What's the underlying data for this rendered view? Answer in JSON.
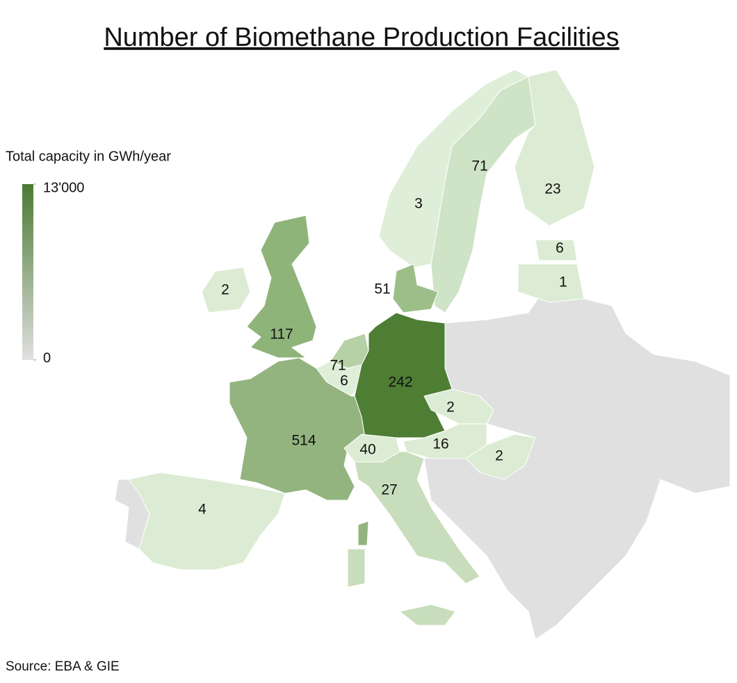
{
  "title": "Number of Biomethane Production Facilities",
  "legend": {
    "title": "Total capacity in GWh/year",
    "ticks": [
      {
        "value": 13000,
        "label": "13'000"
      },
      0
    ],
    "colors": [
      "#4a7a32",
      "#e0e0e0"
    ]
  },
  "regions": [
    {
      "value": 71,
      "color": "#cfe3c6"
    },
    {
      "value": 23,
      "color": "#dcecd4"
    },
    {
      "value": 3,
      "color": "#dfeed8"
    },
    {
      "value": 6,
      "color": "#dcecd4"
    },
    {
      "value": 1,
      "color": "#dcecd4"
    },
    {
      "value": 2,
      "color": "#dcecd4"
    },
    {
      "value": 51,
      "color": "#9cbf8a"
    },
    {
      "value": 117,
      "color": "#8fb47a"
    },
    {
      "value": 71,
      "color": "#b6d1a6"
    },
    {
      "value": 6,
      "color": "#dfeed8"
    },
    {
      "value": 242,
      "color": "#4e7d34"
    },
    {
      "value": 2,
      "color": "#dcecd4"
    },
    {
      "value": 514,
      "color": "#93b47f"
    },
    {
      "value": 40,
      "color": "#dcecd4"
    },
    {
      "value": 16,
      "color": "#dcecd4"
    },
    {
      "value": 2,
      "color": "#dcecd4"
    },
    {
      "value": 27,
      "color": "#c8ddbb"
    },
    {
      "value": 4,
      "color": "#dcecd4"
    }
  ],
  "source": "Source: EBA & GIE"
}
